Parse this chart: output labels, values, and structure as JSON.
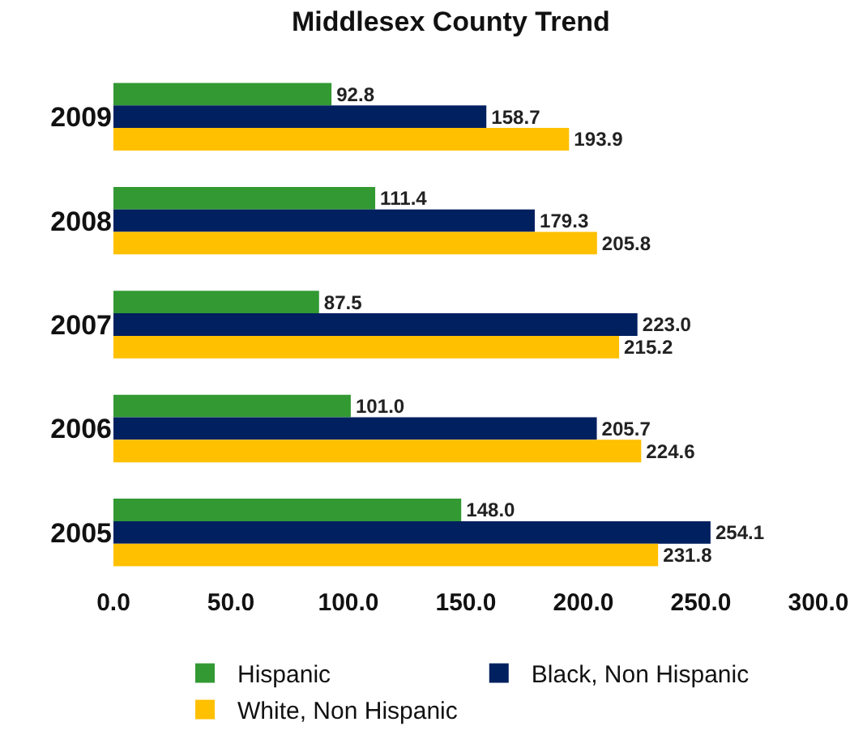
{
  "chart_data": {
    "type": "bar",
    "orientation": "horizontal",
    "title": "Middlesex County Trend",
    "categories": [
      "2009",
      "2008",
      "2007",
      "2006",
      "2005"
    ],
    "series": [
      {
        "name": "Hispanic",
        "color": "#339933",
        "values": [
          92.8,
          111.4,
          87.5,
          101.0,
          148.0
        ],
        "value_labels": [
          "92.8",
          "111.4",
          "87.5",
          "101.0",
          "148.0"
        ]
      },
      {
        "name": "Black, Non Hispanic",
        "color": "#002060",
        "values": [
          158.7,
          179.3,
          223.0,
          205.7,
          254.1
        ],
        "value_labels": [
          "158.7",
          "179.3",
          "223.0",
          "205.7",
          "254.1"
        ]
      },
      {
        "name": "White, Non Hispanic",
        "color": "#ffc000",
        "values": [
          193.9,
          205.8,
          215.2,
          224.6,
          231.8
        ],
        "value_labels": [
          "193.9",
          "205.8",
          "215.2",
          "224.6",
          "231.8"
        ]
      }
    ],
    "xlim": [
      0,
      300
    ],
    "xticks": [
      {
        "value": 0,
        "label": "0.0"
      },
      {
        "value": 50,
        "label": "50.0"
      },
      {
        "value": 100,
        "label": "100.0"
      },
      {
        "value": 150,
        "label": "150.0"
      },
      {
        "value": 200,
        "label": "200.0"
      },
      {
        "value": 250,
        "label": "250.0"
      },
      {
        "value": 300,
        "label": "300.0"
      }
    ],
    "grid": false,
    "legend": "bottom"
  }
}
